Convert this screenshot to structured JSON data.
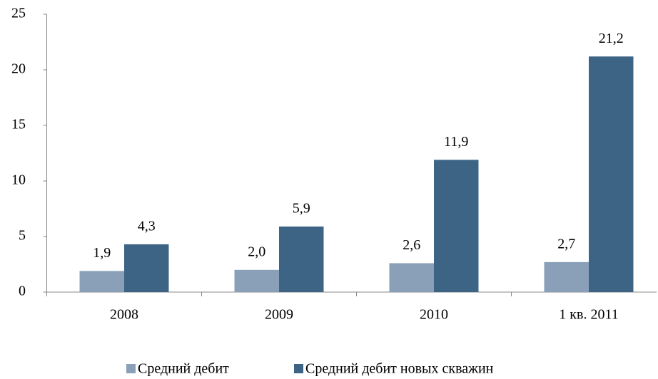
{
  "chart_data": {
    "type": "bar",
    "categories": [
      "2008",
      "2009",
      "2010",
      "1 кв. 2011"
    ],
    "series": [
      {
        "name": "Средний дебит",
        "color": "#8aa0b8",
        "values": [
          1.9,
          2.0,
          2.6,
          2.7
        ],
        "value_labels": [
          "1,9",
          "2,0",
          "2,6",
          "2,7"
        ]
      },
      {
        "name": "Средний дебит новых скважин",
        "color": "#3d6485",
        "values": [
          4.3,
          5.9,
          11.9,
          21.2
        ],
        "value_labels": [
          "4,3",
          "5,9",
          "11,9",
          "21,2"
        ]
      }
    ],
    "ylim": [
      0,
      25
    ],
    "yticks": [
      0,
      5,
      10,
      15,
      20,
      25
    ],
    "grid": false,
    "legend": "bottom"
  }
}
